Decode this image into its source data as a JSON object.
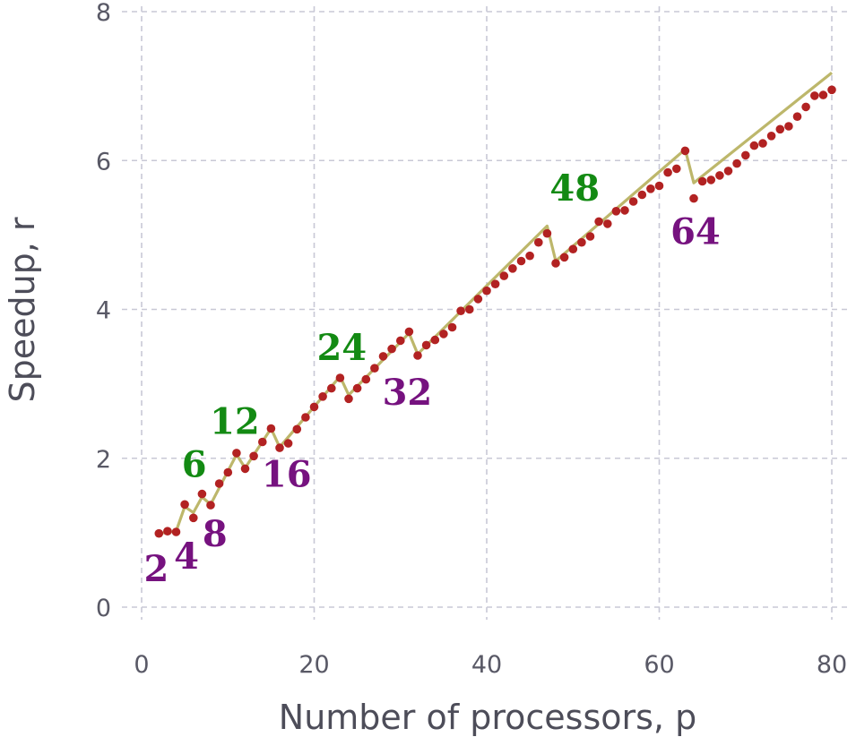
{
  "chart_data": {
    "type": "scatter",
    "title": "",
    "xlabel": "Number of processors, p",
    "ylabel": "Speedup, r",
    "xlim": [
      0,
      80
    ],
    "ylim": [
      0,
      8
    ],
    "xticks": [
      0,
      20,
      40,
      60,
      80
    ],
    "yticks": [
      0,
      2,
      4,
      6,
      8
    ],
    "grid": true,
    "colors": {
      "points": "#b22222",
      "line": "#bdb76b",
      "green_labels": "#138a13",
      "purple_labels": "#76127f"
    },
    "series": [
      {
        "kind": "points",
        "x": [
          2,
          3,
          4,
          5,
          6,
          7,
          8,
          9,
          10,
          11,
          12,
          13,
          14,
          15,
          16,
          17,
          18,
          19,
          20,
          21,
          22,
          23,
          24,
          25,
          26,
          27,
          28,
          29,
          30,
          31,
          32,
          33,
          34,
          35,
          36,
          37,
          38,
          39,
          40,
          41,
          42,
          43,
          44,
          45,
          46,
          47,
          48,
          49,
          50,
          51,
          52,
          53,
          54,
          55,
          56,
          57,
          58,
          59,
          60,
          61,
          62,
          63,
          64,
          65,
          66,
          67,
          68,
          69,
          70,
          71,
          72,
          73,
          74,
          75,
          76,
          77,
          78,
          79,
          80
        ],
        "y": [
          0.99,
          1.02,
          1.01,
          1.38,
          1.2,
          1.52,
          1.37,
          1.66,
          1.81,
          2.07,
          1.86,
          2.03,
          2.22,
          2.4,
          2.14,
          2.2,
          2.39,
          2.55,
          2.69,
          2.83,
          2.94,
          3.08,
          2.8,
          2.94,
          3.06,
          3.21,
          3.37,
          3.47,
          3.58,
          3.7,
          3.38,
          3.52,
          3.59,
          3.67,
          3.76,
          3.98,
          4.0,
          4.14,
          4.25,
          4.34,
          4.45,
          4.55,
          4.65,
          4.72,
          4.9,
          5.02,
          4.62,
          4.7,
          4.81,
          4.9,
          4.98,
          5.18,
          5.15,
          5.32,
          5.33,
          5.45,
          5.54,
          5.62,
          5.66,
          5.84,
          5.89,
          6.13,
          5.49,
          5.72,
          5.74,
          5.8,
          5.86,
          5.96,
          6.07,
          6.2,
          6.23,
          6.33,
          6.42,
          6.46,
          6.59,
          6.72,
          6.87,
          6.88,
          6.95
        ]
      },
      {
        "kind": "line",
        "x": [
          2,
          4,
          4,
          5,
          6,
          7,
          8,
          11,
          12,
          15,
          16,
          23,
          24,
          31,
          32,
          47,
          48,
          63,
          64,
          80
        ],
        "y": [
          0.99,
          1.02,
          1.02,
          1.35,
          1.27,
          1.48,
          1.38,
          2.05,
          1.87,
          2.4,
          2.15,
          3.1,
          2.85,
          3.68,
          3.4,
          5.12,
          4.65,
          6.15,
          5.7,
          7.18
        ]
      }
    ],
    "annotations": [
      {
        "text": "2",
        "x": 1.7,
        "y": 0.35,
        "color": "purple"
      },
      {
        "text": "4",
        "x": 5.2,
        "y": 0.52,
        "color": "purple"
      },
      {
        "text": "6",
        "x": 6.1,
        "y": 1.75,
        "color": "green"
      },
      {
        "text": "8",
        "x": 8.5,
        "y": 0.82,
        "color": "purple"
      },
      {
        "text": "12",
        "x": 10.8,
        "y": 2.33,
        "color": "green"
      },
      {
        "text": "16",
        "x": 16.8,
        "y": 1.62,
        "color": "purple"
      },
      {
        "text": "24",
        "x": 23.2,
        "y": 3.32,
        "color": "green"
      },
      {
        "text": "32",
        "x": 30.8,
        "y": 2.72,
        "color": "purple"
      },
      {
        "text": "48",
        "x": 50.2,
        "y": 5.46,
        "color": "green"
      },
      {
        "text": "64",
        "x": 64.2,
        "y": 4.88,
        "color": "purple"
      }
    ]
  }
}
